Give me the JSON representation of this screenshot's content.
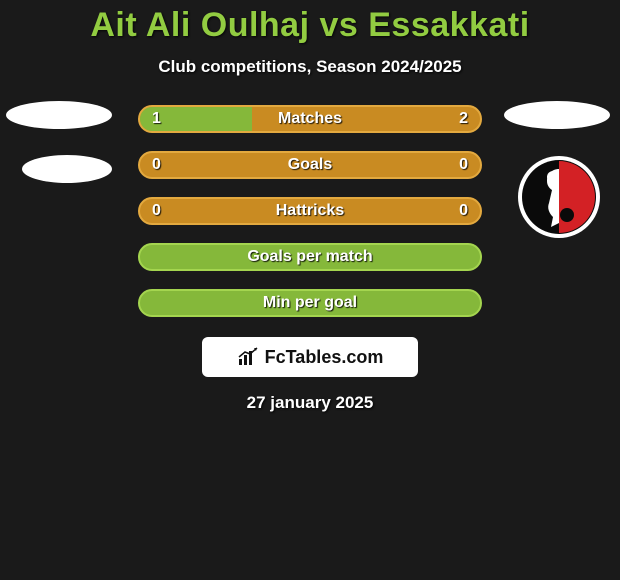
{
  "title": "Ait Ali Oulhaj vs Essakkati",
  "subtitle": "Club competitions, Season 2024/2025",
  "date": "27 january 2025",
  "footer_brand": "FcTables.com",
  "colors": {
    "background": "#1a1a1a",
    "title": "#92cc41",
    "text": "#ffffff",
    "bar_fill_green": "#85b83a",
    "bar_border_green": "#a4d54f",
    "bar_bg_orange": "#c98b22",
    "bar_border_orange": "#e3a93f",
    "badge_red": "#d32125",
    "badge_black": "#0a0a0a",
    "badge_white": "#ffffff"
  },
  "bars": [
    {
      "label": "Matches",
      "left_val": "1",
      "right_val": "2",
      "has_split": true,
      "fill_pct": 33,
      "fill_color": "#85b83a",
      "bg_color": "#c98b22",
      "border_color": "#e3a93f"
    },
    {
      "label": "Goals",
      "left_val": "0",
      "right_val": "0",
      "has_split": false,
      "fill_pct": 0,
      "fill_color": "#85b83a",
      "bg_color": "#c98b22",
      "border_color": "#e3a93f"
    },
    {
      "label": "Hattricks",
      "left_val": "0",
      "right_val": "0",
      "has_split": false,
      "fill_pct": 0,
      "fill_color": "#85b83a",
      "bg_color": "#c98b22",
      "border_color": "#e3a93f"
    },
    {
      "label": "Goals per match",
      "left_val": "",
      "right_val": "",
      "has_split": false,
      "fill_pct": 100,
      "fill_color": "#85b83a",
      "bg_color": "#85b83a",
      "border_color": "#a4d54f"
    },
    {
      "label": "Min per goal",
      "left_val": "",
      "right_val": "",
      "has_split": false,
      "fill_pct": 100,
      "fill_color": "#85b83a",
      "bg_color": "#85b83a",
      "border_color": "#a4d54f"
    }
  ]
}
